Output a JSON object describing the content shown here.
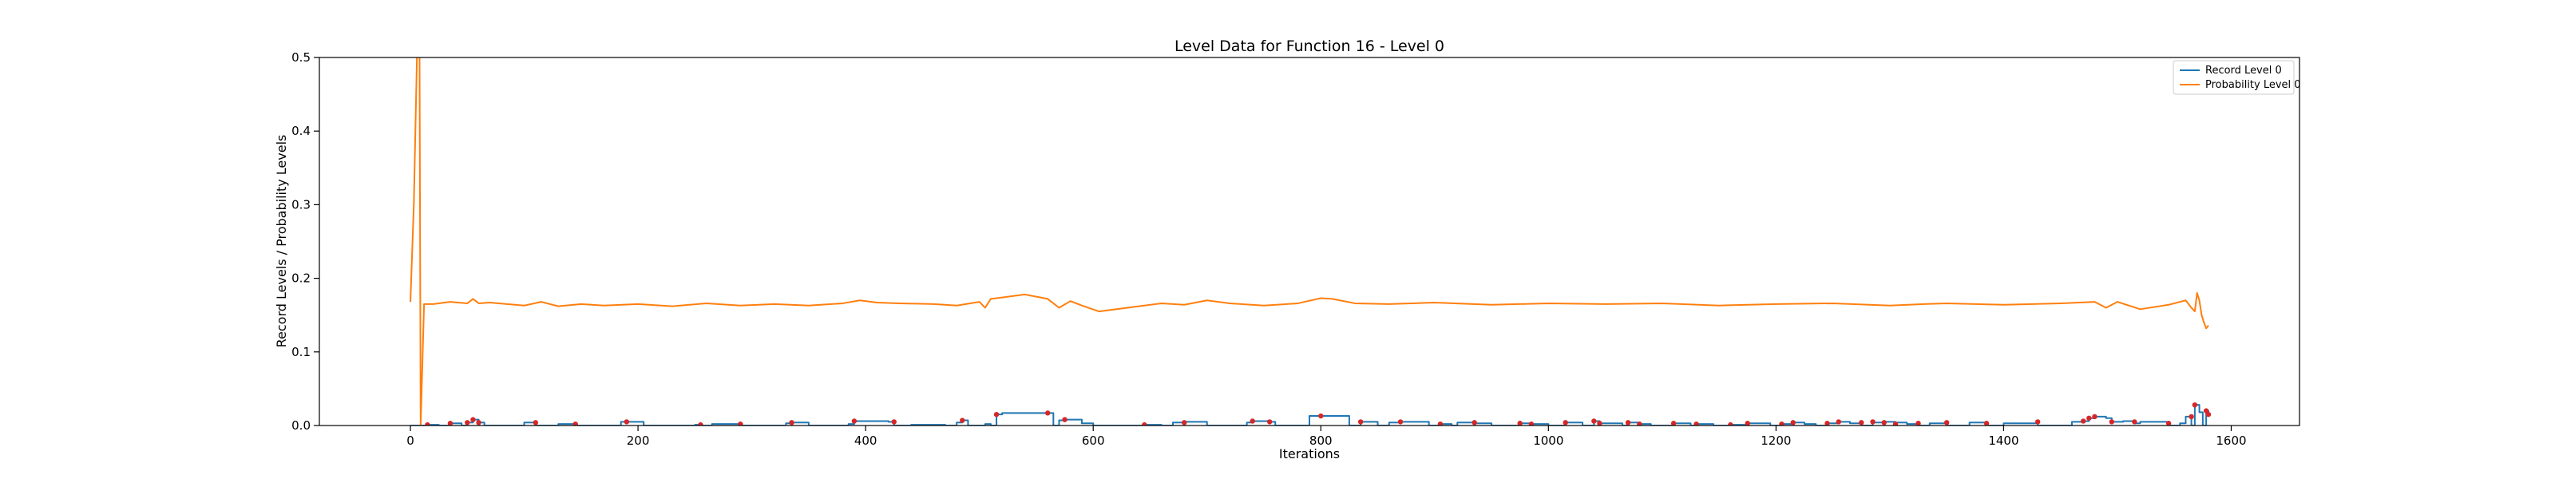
{
  "chart_data": {
    "type": "line",
    "title": "Level Data for Function 16 - Level 0",
    "xlabel": "Iterations",
    "ylabel": "Record Levels / Probability Levels",
    "xlim": [
      -80,
      1660
    ],
    "ylim": [
      0,
      0.5
    ],
    "x_ticks": [
      "0",
      "200",
      "400",
      "600",
      "800",
      "1000",
      "1200",
      "1400",
      "1600"
    ],
    "y_ticks": [
      "0.0",
      "0.1",
      "0.2",
      "0.3",
      "0.4",
      "0.5"
    ],
    "grid": false,
    "legend_position": "top-right",
    "series": [
      {
        "name": "Record Level 0",
        "color": "#1f77b4",
        "kind": "step",
        "x": [
          0,
          15,
          25,
          35,
          45,
          50,
          55,
          60,
          65,
          75,
          100,
          110,
          130,
          145,
          185,
          190,
          205,
          215,
          250,
          255,
          265,
          290,
          330,
          335,
          350,
          355,
          385,
          390,
          400,
          420,
          425,
          440,
          470,
          480,
          485,
          490,
          500,
          505,
          510,
          515,
          520,
          560,
          565,
          570,
          575,
          590,
          600,
          640,
          645,
          660,
          670,
          680,
          700,
          710,
          735,
          740,
          755,
          760,
          770,
          790,
          800,
          825,
          835,
          850,
          860,
          870,
          895,
          905,
          915,
          920,
          935,
          950,
          965,
          975,
          985,
          1000,
          1015,
          1030,
          1040,
          1045,
          1065,
          1070,
          1080,
          1090,
          1100,
          1110,
          1125,
          1130,
          1145,
          1160,
          1175,
          1195,
          1205,
          1215,
          1225,
          1235,
          1245,
          1255,
          1265,
          1275,
          1285,
          1295,
          1305,
          1315,
          1325,
          1335,
          1350,
          1370,
          1385,
          1400,
          1430,
          1460,
          1470,
          1475,
          1480,
          1490,
          1495,
          1505,
          1515,
          1520,
          1545,
          1555,
          1560,
          1565,
          1568,
          1572,
          1575,
          1578,
          1580
        ],
        "values": [
          0.0,
          0.001,
          0.0,
          0.003,
          0.0,
          0.004,
          0.008,
          0.004,
          0.0,
          0.0,
          0.004,
          0.0,
          0.002,
          0.0,
          0.005,
          0.005,
          0.0,
          0.0,
          0.001,
          0.0,
          0.002,
          0.0,
          0.003,
          0.004,
          0.0,
          0.0,
          0.002,
          0.006,
          0.006,
          0.005,
          0.0,
          0.001,
          0.0,
          0.004,
          0.007,
          0.0,
          0.0,
          0.002,
          0.0,
          0.015,
          0.017,
          0.017,
          0.0,
          0.007,
          0.008,
          0.003,
          0.0,
          0.0,
          0.001,
          0.0,
          0.004,
          0.005,
          0.0,
          0.0,
          0.004,
          0.006,
          0.005,
          0.0,
          0.0,
          0.013,
          0.013,
          0.0,
          0.005,
          0.0,
          0.004,
          0.005,
          0.0,
          0.002,
          0.0,
          0.004,
          0.003,
          0.0,
          0.0,
          0.003,
          0.002,
          0.0,
          0.004,
          0.0,
          0.006,
          0.003,
          0.0,
          0.004,
          0.002,
          0.0,
          0.0,
          0.003,
          0.0,
          0.002,
          0.0,
          0.001,
          0.003,
          0.0,
          0.002,
          0.004,
          0.002,
          0.0,
          0.003,
          0.005,
          0.003,
          0.0,
          0.004,
          0.005,
          0.004,
          0.002,
          0.0,
          0.003,
          0.0,
          0.004,
          0.0,
          0.003,
          0.0,
          0.005,
          0.006,
          0.01,
          0.012,
          0.01,
          0.005,
          0.006,
          0.003,
          0.005,
          0.0,
          0.003,
          0.012,
          0.0,
          0.028,
          0.018,
          0.0,
          0.02,
          0.015
        ]
      },
      {
        "name": "Probability Level 0",
        "color": "#ff7f0e",
        "kind": "line",
        "x": [
          0,
          3,
          6,
          8,
          9,
          12,
          20,
          35,
          50,
          55,
          60,
          70,
          100,
          115,
          130,
          150,
          170,
          200,
          230,
          260,
          290,
          320,
          350,
          380,
          395,
          410,
          430,
          460,
          480,
          500,
          505,
          510,
          520,
          540,
          560,
          570,
          580,
          590,
          605,
          620,
          640,
          660,
          680,
          700,
          720,
          750,
          780,
          800,
          810,
          830,
          860,
          900,
          950,
          1000,
          1050,
          1100,
          1150,
          1200,
          1250,
          1300,
          1330,
          1350,
          1400,
          1450,
          1480,
          1490,
          1500,
          1520,
          1545,
          1560,
          1565,
          1568,
          1570,
          1572,
          1574,
          1576,
          1578,
          1580
        ],
        "values": [
          0.168,
          0.3,
          0.52,
          0.52,
          0.0,
          0.165,
          0.165,
          0.168,
          0.166,
          0.172,
          0.166,
          0.167,
          0.163,
          0.168,
          0.162,
          0.165,
          0.163,
          0.165,
          0.162,
          0.166,
          0.163,
          0.165,
          0.163,
          0.166,
          0.17,
          0.167,
          0.166,
          0.165,
          0.163,
          0.168,
          0.16,
          0.172,
          0.174,
          0.178,
          0.172,
          0.16,
          0.169,
          0.163,
          0.155,
          0.158,
          0.162,
          0.166,
          0.164,
          0.17,
          0.166,
          0.163,
          0.166,
          0.173,
          0.172,
          0.166,
          0.165,
          0.167,
          0.164,
          0.166,
          0.165,
          0.166,
          0.163,
          0.165,
          0.166,
          0.163,
          0.165,
          0.166,
          0.164,
          0.166,
          0.168,
          0.16,
          0.168,
          0.158,
          0.164,
          0.17,
          0.16,
          0.155,
          0.18,
          0.17,
          0.15,
          0.14,
          0.132,
          0.136
        ]
      }
    ],
    "markers": {
      "name": "Record points",
      "color": "#d62728",
      "x": [
        15,
        35,
        50,
        55,
        60,
        110,
        145,
        190,
        255,
        290,
        335,
        390,
        425,
        485,
        515,
        560,
        575,
        645,
        680,
        740,
        755,
        800,
        835,
        870,
        905,
        935,
        975,
        985,
        1015,
        1040,
        1045,
        1070,
        1080,
        1110,
        1130,
        1160,
        1175,
        1205,
        1215,
        1245,
        1255,
        1275,
        1285,
        1295,
        1305,
        1325,
        1350,
        1385,
        1430,
        1470,
        1475,
        1480,
        1495,
        1515,
        1545,
        1565,
        1568,
        1578,
        1580
      ],
      "values": [
        0.001,
        0.003,
        0.004,
        0.008,
        0.004,
        0.004,
        0.002,
        0.005,
        0.001,
        0.002,
        0.004,
        0.006,
        0.005,
        0.007,
        0.015,
        0.017,
        0.008,
        0.001,
        0.004,
        0.006,
        0.005,
        0.013,
        0.005,
        0.005,
        0.002,
        0.004,
        0.003,
        0.002,
        0.004,
        0.006,
        0.003,
        0.004,
        0.002,
        0.003,
        0.002,
        0.001,
        0.003,
        0.002,
        0.004,
        0.003,
        0.005,
        0.004,
        0.005,
        0.004,
        0.002,
        0.003,
        0.004,
        0.003,
        0.005,
        0.006,
        0.01,
        0.012,
        0.005,
        0.005,
        0.003,
        0.012,
        0.028,
        0.02,
        0.015
      ]
    }
  }
}
